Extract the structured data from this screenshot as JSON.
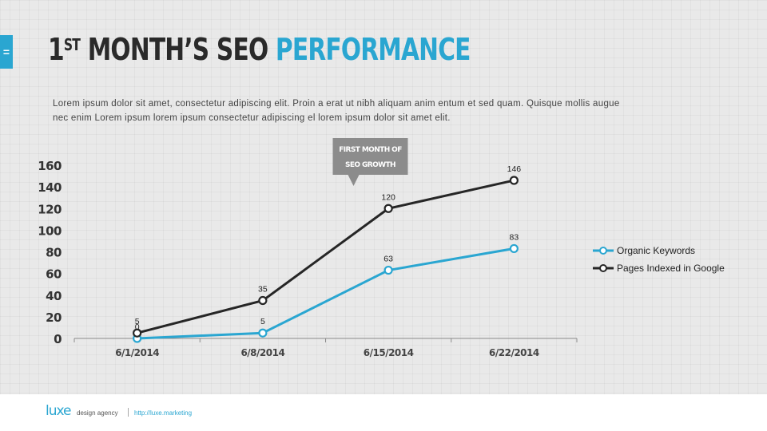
{
  "header": {
    "title_num": "1",
    "title_sup": "ST",
    "title_main": " MONTH’S SEO ",
    "title_accent": "PERFORMANCE",
    "description": "Lorem ipsum dolor sit amet, consectetur adipiscing elit. Proin a erat ut nibh aliquam anim entum et sed quam. Quisque mollis augue nec enim Lorem ipsum lorem ipsum consectetur adipiscing el lorem ipsum dolor sit amet elit."
  },
  "side_tab": {
    "glyph": "="
  },
  "colors": {
    "accent": "#2aa6d1",
    "dark": "#262626",
    "callout": "#8c8c8c"
  },
  "chart_data": {
    "type": "line",
    "categories": [
      "6/1/2014",
      "6/8/2014",
      "6/15/2014",
      "6/22/2014"
    ],
    "ylim": [
      0,
      160
    ],
    "yticks": [
      0,
      20,
      40,
      60,
      80,
      100,
      120,
      140,
      160
    ],
    "series": [
      {
        "name": "Organic Keywords",
        "values": [
          0,
          5,
          63,
          83
        ],
        "color": "#2aa6d1"
      },
      {
        "name": "Pages Indexed in Google",
        "values": [
          5,
          35,
          120,
          146
        ],
        "color": "#262626"
      }
    ],
    "legend_position": "right",
    "annotation": {
      "lines": [
        "FIRST MONTH OF",
        "SEO GROWTH"
      ]
    },
    "grid": false
  },
  "footer": {
    "logo": "luxe",
    "agency": "design agency",
    "url": "http://luxe.marketing"
  }
}
